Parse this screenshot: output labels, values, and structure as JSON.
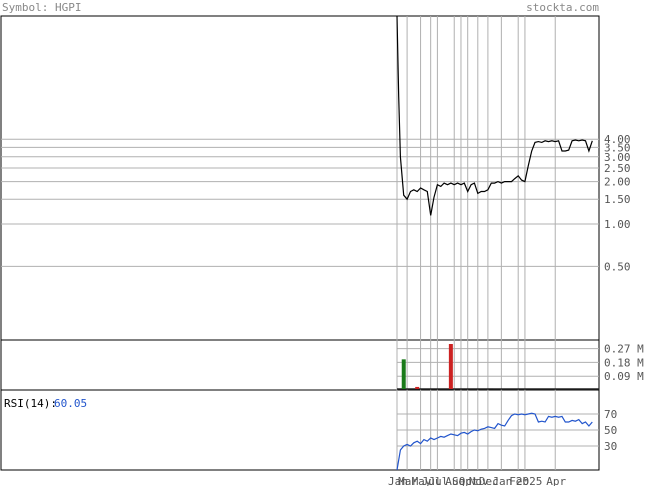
{
  "header": {
    "symbol_label": "Symbol: HGPI",
    "site": "stockta.com"
  },
  "colors": {
    "frame": "#000000",
    "grid": "#b0b0b0",
    "price_line": "#000000",
    "tick_text": "#555555",
    "header_text": "#888888",
    "vol_up": "#1a7a1a",
    "vol_down": "#cc2222",
    "vol_flat": "#222222",
    "rsi_line": "#2255cc",
    "rsi_value": "#2255cc"
  },
  "chart_data": [
    {
      "type": "line",
      "panel": "price",
      "scale": "log",
      "ylim": [
        0.15,
        30
      ],
      "y_ticks": [
        {
          "value": 4.0,
          "label": "4.00"
        },
        {
          "value": 3.5,
          "label": "3.50"
        },
        {
          "value": 3.0,
          "label": "3.00"
        },
        {
          "value": 2.5,
          "label": "2.50"
        },
        {
          "value": 2.0,
          "label": "2.00"
        },
        {
          "value": 1.5,
          "label": "1.50"
        },
        {
          "value": 1.0,
          "label": "1.00"
        },
        {
          "value": 0.5,
          "label": "0.50"
        }
      ],
      "x_range": [
        0,
        60
      ],
      "values": [
        [
          0,
          30
        ],
        [
          0.5,
          8
        ],
        [
          1,
          3
        ],
        [
          2,
          1.6
        ],
        [
          3,
          1.5
        ],
        [
          4,
          1.7
        ],
        [
          5,
          1.75
        ],
        [
          6,
          1.7
        ],
        [
          7,
          1.8
        ],
        [
          8,
          1.75
        ],
        [
          9,
          1.7
        ],
        [
          10,
          1.15
        ],
        [
          11,
          1.55
        ],
        [
          12,
          1.9
        ],
        [
          13,
          1.85
        ],
        [
          14,
          1.95
        ],
        [
          15,
          1.9
        ],
        [
          16,
          1.95
        ],
        [
          17,
          1.9
        ],
        [
          18,
          1.95
        ],
        [
          19,
          1.9
        ],
        [
          20,
          1.95
        ],
        [
          21,
          1.7
        ],
        [
          22,
          1.9
        ],
        [
          23,
          1.95
        ],
        [
          24,
          1.65
        ],
        [
          25,
          1.7
        ],
        [
          26,
          1.7
        ],
        [
          27,
          1.75
        ],
        [
          28,
          1.95
        ],
        [
          29,
          1.95
        ],
        [
          30,
          2.0
        ],
        [
          31,
          1.95
        ],
        [
          32,
          2.0
        ],
        [
          33,
          2.0
        ],
        [
          34,
          2.0
        ],
        [
          35,
          2.1
        ],
        [
          36,
          2.2
        ],
        [
          37,
          2.05
        ],
        [
          38,
          2.0
        ],
        [
          39,
          2.6
        ],
        [
          40,
          3.3
        ],
        [
          41,
          3.8
        ],
        [
          42,
          3.85
        ],
        [
          43,
          3.8
        ],
        [
          44,
          3.9
        ],
        [
          45,
          3.85
        ],
        [
          46,
          3.9
        ],
        [
          47,
          3.85
        ],
        [
          48,
          3.9
        ],
        [
          49,
          3.3
        ],
        [
          50,
          3.3
        ],
        [
          51,
          3.35
        ],
        [
          52,
          3.9
        ],
        [
          53,
          3.95
        ],
        [
          54,
          3.9
        ],
        [
          55,
          3.95
        ],
        [
          56,
          3.9
        ],
        [
          57,
          3.3
        ],
        [
          58,
          3.9
        ]
      ],
      "x_labels": [
        "Jan",
        "Mar",
        "May",
        "Jul",
        "Jul",
        "Aug",
        "Sep",
        "Oct",
        "Nov",
        "Dec",
        "Jan",
        "Feb",
        "2025",
        "Apr"
      ],
      "x_label_positions": [
        0,
        3,
        7,
        10,
        12,
        17,
        19,
        21,
        24,
        27,
        31,
        36,
        38,
        47
      ]
    },
    {
      "type": "bar",
      "panel": "volume",
      "unit": "M",
      "ylim": [
        0,
        0.3
      ],
      "y_ticks": [
        {
          "value": 0.27,
          "label": "0.27 M"
        },
        {
          "value": 0.18,
          "label": "0.18 M"
        },
        {
          "value": 0.09,
          "label": "0.09 M"
        }
      ],
      "bars": [
        {
          "x": 2,
          "value": 0.2,
          "dir": "up"
        },
        {
          "x": 6,
          "value": 0.02,
          "dir": "down"
        },
        {
          "x": 16,
          "value": 0.3,
          "dir": "down"
        },
        {
          "x": 28,
          "value": 0.01,
          "dir": "flat"
        }
      ]
    },
    {
      "type": "line",
      "panel": "rsi",
      "label": "RSI(14):",
      "current_value": "60.05",
      "ylim": [
        0,
        100
      ],
      "y_ticks": [
        {
          "value": 70,
          "label": "70"
        },
        {
          "value": 50,
          "label": "50"
        },
        {
          "value": 30,
          "label": "30"
        }
      ],
      "values": [
        [
          0,
          0
        ],
        [
          1,
          25
        ],
        [
          2,
          30
        ],
        [
          3,
          32
        ],
        [
          4,
          30
        ],
        [
          5,
          34
        ],
        [
          6,
          36
        ],
        [
          7,
          33
        ],
        [
          8,
          38
        ],
        [
          9,
          36
        ],
        [
          10,
          40
        ],
        [
          11,
          38
        ],
        [
          12,
          40
        ],
        [
          13,
          42
        ],
        [
          14,
          41
        ],
        [
          15,
          43
        ],
        [
          16,
          45
        ],
        [
          17,
          44
        ],
        [
          18,
          43
        ],
        [
          19,
          46
        ],
        [
          20,
          47
        ],
        [
          21,
          45
        ],
        [
          22,
          48
        ],
        [
          23,
          50
        ],
        [
          24,
          49
        ],
        [
          25,
          51
        ],
        [
          26,
          52
        ],
        [
          27,
          54
        ],
        [
          28,
          53
        ],
        [
          29,
          52
        ],
        [
          30,
          58
        ],
        [
          31,
          56
        ],
        [
          32,
          55
        ],
        [
          33,
          62
        ],
        [
          34,
          68
        ],
        [
          35,
          70
        ],
        [
          36,
          69
        ],
        [
          37,
          70
        ],
        [
          38,
          69
        ],
        [
          39,
          70
        ],
        [
          40,
          71
        ],
        [
          41,
          70
        ],
        [
          42,
          60
        ],
        [
          43,
          61
        ],
        [
          44,
          60
        ],
        [
          45,
          67
        ],
        [
          46,
          66
        ],
        [
          47,
          67
        ],
        [
          48,
          66
        ],
        [
          49,
          67
        ],
        [
          50,
          60
        ],
        [
          51,
          60
        ],
        [
          52,
          62
        ],
        [
          53,
          61
        ],
        [
          54,
          63
        ],
        [
          55,
          58
        ],
        [
          56,
          60
        ],
        [
          57,
          55
        ],
        [
          58,
          60
        ]
      ]
    }
  ]
}
